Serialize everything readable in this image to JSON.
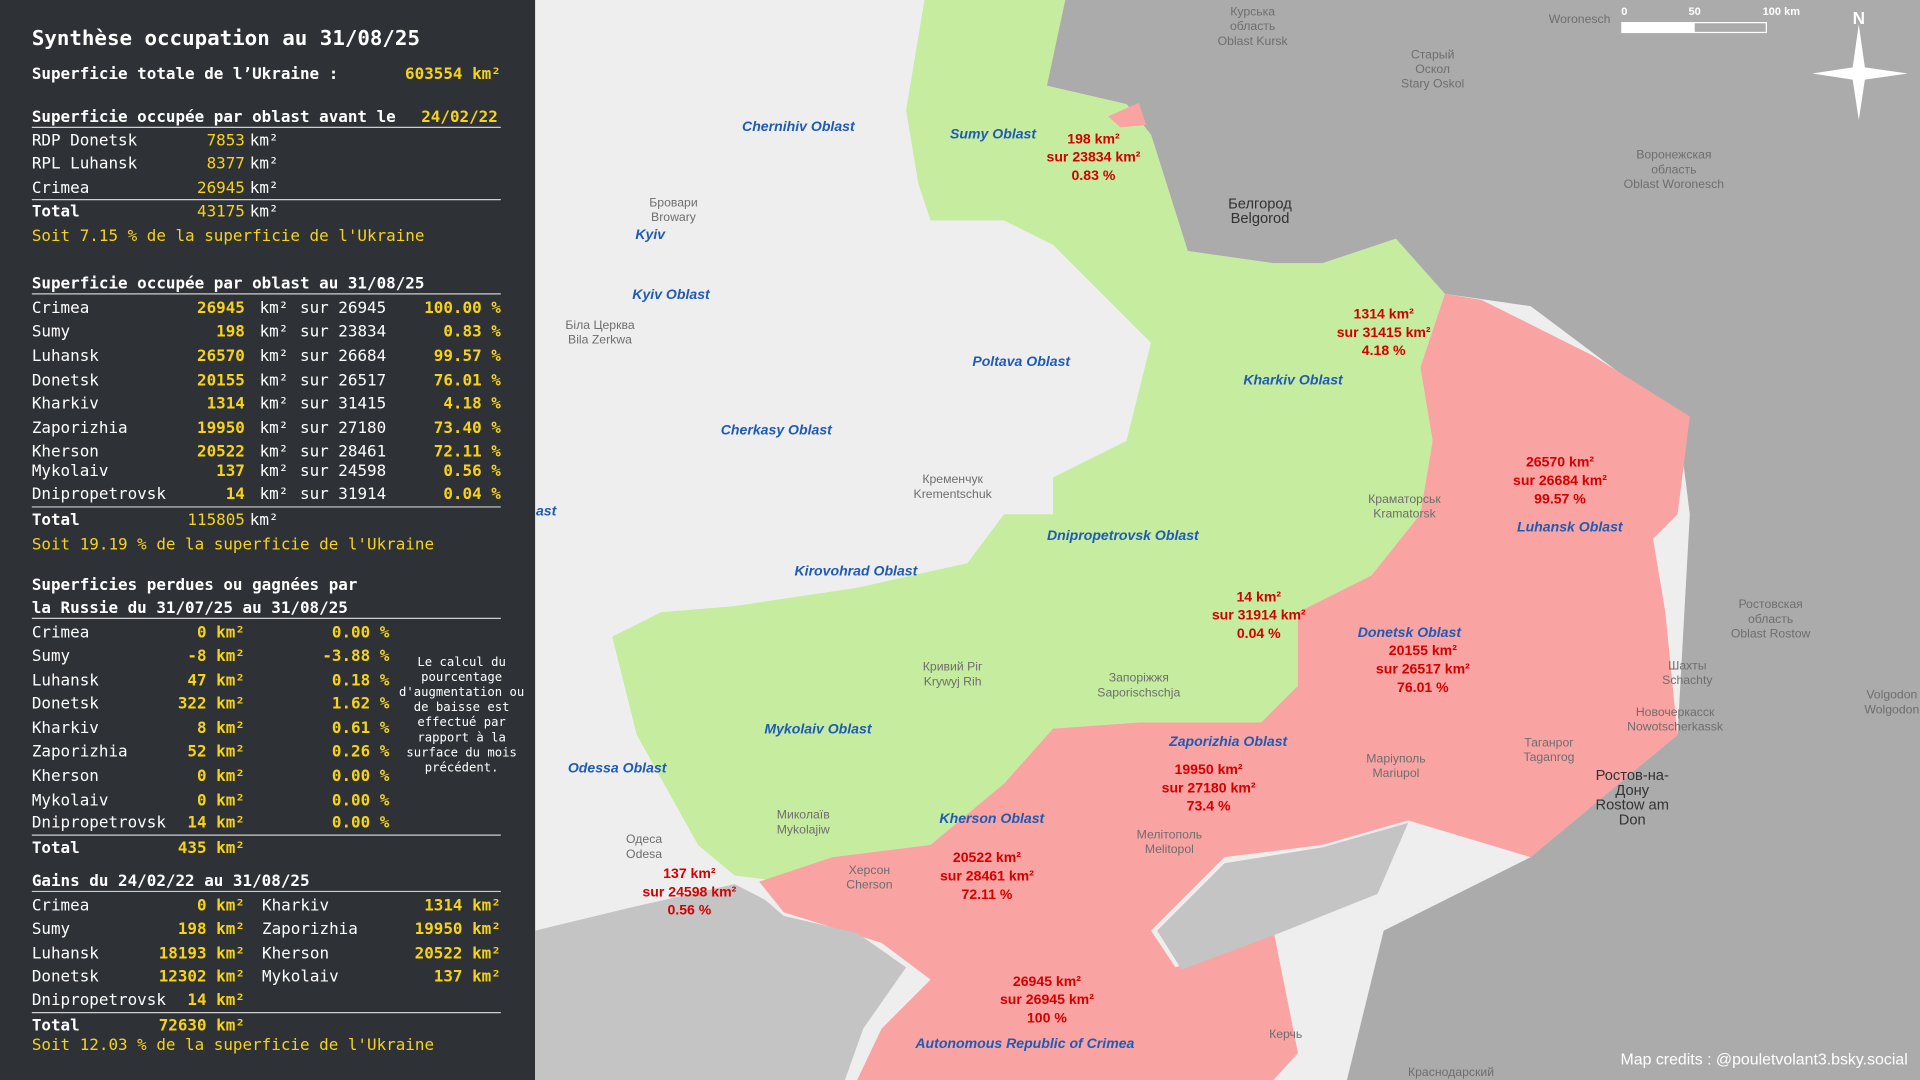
{
  "panel": {
    "title": "Synthèse occupation au 31/08/25",
    "total_area": [
      "Superficie totale de l’Ukraine :",
      "603554 km²"
    ],
    "before": {
      "heading": "Superficie occupée par oblast avant le",
      "date": "24/02/22",
      "rows": [
        [
          "RDP Donetsk",
          "7853",
          "km²"
        ],
        [
          "RPL Luhansk",
          "8377",
          "km²"
        ],
        [
          "Crimea",
          "26945",
          "km²"
        ]
      ],
      "total": [
        "Total",
        "43175",
        "km²"
      ],
      "summary": "Soit 7.15 % de la superficie de l'Ukraine"
    },
    "current": {
      "heading": "Superficie occupée par oblast au 31/08/25",
      "rows": [
        [
          "Crimea",
          "26945",
          "km²",
          "sur 26945",
          "100.00 %"
        ],
        [
          "Sumy",
          "198",
          "km²",
          "sur 23834",
          "0.83 %"
        ],
        [
          "Luhansk",
          "26570",
          "km²",
          "sur 26684",
          "99.57 %"
        ],
        [
          "Donetsk",
          "20155",
          "km²",
          "sur 26517",
          "76.01 %"
        ],
        [
          "Kharkiv",
          "1314",
          "km²",
          "sur 31415",
          "4.18 %"
        ],
        [
          "Zaporizhia",
          "19950",
          "km²",
          "sur 27180",
          "73.40 %"
        ],
        [
          "Kherson",
          "20522",
          "km²",
          "sur 28461",
          "72.11 %"
        ],
        [
          "Mykolaiv",
          "137",
          "km²",
          "sur 24598",
          "0.56 %"
        ],
        [
          "Dnipropetrovsk",
          "14",
          "km²",
          "sur 31914",
          "0.04 %"
        ]
      ],
      "total": [
        "Total",
        "115805",
        "km²"
      ],
      "summary": "Soit 19.19 % de la superficie de l'Ukraine"
    },
    "change": {
      "heading": [
        "Superficies perdues ou gagnées par",
        "la Russie du 31/07/25 au 31/08/25"
      ],
      "rows": [
        [
          "Crimea",
          "0 km²",
          "0.00 %"
        ],
        [
          "Sumy",
          "-8 km²",
          "-3.88 %"
        ],
        [
          "Luhansk",
          "47 km²",
          "0.18 %"
        ],
        [
          "Donetsk",
          "322 km²",
          "1.62 %"
        ],
        [
          "Kharkiv",
          "8 km²",
          "0.61 %"
        ],
        [
          "Zaporizhia",
          "52 km²",
          "0.26 %"
        ],
        [
          "Kherson",
          "0 km²",
          "0.00 %"
        ],
        [
          "Mykolaiv",
          "0 km²",
          "0.00 %"
        ],
        [
          "Dnipropetrovsk",
          "14 km²",
          "0.00 %"
        ]
      ],
      "total": [
        "Total",
        "435 km²"
      ],
      "note": [
        "Le calcul du",
        "pourcentage",
        "d'augmentation ou",
        "de baisse est",
        "effectué par",
        "rapport à la",
        "surface du mois",
        "précédent."
      ]
    },
    "gains": {
      "heading": "Gains du 24/02/22 au 31/08/25",
      "rows": [
        [
          "Crimea",
          "0 km²",
          "Kharkiv",
          "1314 km²"
        ],
        [
          "Sumy",
          "198 km²",
          "Zaporizhia",
          "19950 km²"
        ],
        [
          "Luhansk",
          "18193 km²",
          "Kherson",
          "20522 km²"
        ],
        [
          "Donetsk",
          "12302 km²",
          "Mykolaiv",
          "137 km²"
        ],
        [
          "Dnipropetrovsk",
          "14 km²"
        ]
      ],
      "total": [
        "Total",
        "72630 km²"
      ],
      "summary": "Soit 12.03 % de la superficie de l'Ukraine"
    }
  },
  "map": {
    "oblasts": [
      "Chernihiv Oblast",
      "Sumy Oblast",
      "Kyiv Oblast",
      "Poltava Oblast",
      "Kharkiv Oblast",
      "Cherkasy Oblast",
      "Luhansk Oblast",
      "Dnipropetrovsk Oblast",
      "Kirovohrad Oblast",
      "Donetsk Oblast",
      "Mykolaiv Oblast",
      "Zaporizhia Oblast",
      "Odessa Oblast",
      "Kherson Oblast",
      "Autonomous Republic of Crimea",
      "Kyiv",
      "ast"
    ],
    "occupation": [
      [
        "198 km²",
        "sur 23834 km²",
        "0.83 %"
      ],
      [
        "1314 km²",
        "sur 31415 km²",
        "4.18 %"
      ],
      [
        "26570 km²",
        "sur 26684 km²",
        "99.57 %"
      ],
      [
        "14 km²",
        "sur 31914 km²",
        "0.04 %"
      ],
      [
        "20155 km²",
        "sur 26517 km²",
        "76.01 %"
      ],
      [
        "19950 km²",
        "sur 27180 km²",
        "73.4 %"
      ],
      [
        "20522 km²",
        "sur 28461 km²",
        "72.11 %"
      ],
      [
        "137 km²",
        "sur 24598 km²",
        "0.56 %"
      ],
      [
        "26945 km²",
        "sur 26945 km²",
        "100 %"
      ]
    ],
    "places": [
      [
        "Курська",
        "область",
        "Oblast Kursk"
      ],
      [
        "Woronesch"
      ],
      [
        "Старый",
        "Оскол",
        "Stary Oskol"
      ],
      [
        "Белгород",
        "Belgorod"
      ],
      [
        "Воронежская",
        "область",
        "Oblast Woronesch"
      ],
      [
        "Ростовская",
        "область",
        "Oblast Rostow"
      ],
      [
        "Шахты",
        "Schachty"
      ],
      [
        "Новочеркасск",
        "Nowotscherkassk"
      ],
      [
        "Таганрог",
        "Taganrog"
      ],
      [
        "Ростов-на-",
        "Дону",
        "Rostow am",
        "Don"
      ],
      [
        "Volgodon",
        "Wolgodon"
      ],
      [
        "Керчь"
      ],
      [
        "Краснодарский"
      ],
      [
        "Кривий Ріг",
        "Krywyj Rih"
      ],
      [
        "Запоріжжя",
        "Saporischschja"
      ],
      [
        "Маріуполь",
        "Mariupol"
      ],
      [
        "Мелітополь",
        "Melitopol"
      ],
      [
        "Херсон",
        "Cherson"
      ],
      [
        "Миколаїв",
        "Mykolajiw"
      ],
      [
        "Одеса",
        "Odesa"
      ],
      [
        "Бровари",
        "Browary"
      ],
      [
        "Біла Церква",
        "Bila Zerkwa"
      ],
      [
        "Кременчук",
        "Krementschuk"
      ],
      [
        "Краматорськ",
        "Kramatorsk"
      ]
    ],
    "scale": [
      "0",
      "50",
      "100 km"
    ],
    "north": "N",
    "credits": "Map credits : @pouletvolant3.bsky.social"
  }
}
